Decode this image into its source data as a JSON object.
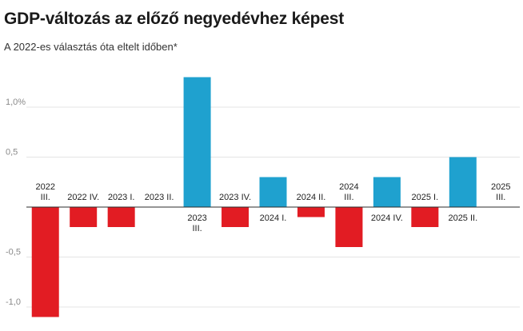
{
  "title": "GDP-változás az előző negyedévhez képest",
  "subtitle": "A 2022-es választás óta eltelt időben*",
  "colors": {
    "positive": "#1fa1cf",
    "negative": "#e21c23",
    "grid": "#e4e4e4",
    "axis": "#2b2b2b"
  },
  "chart_data": {
    "type": "bar",
    "title": "GDP-változás az előző negyedévhez képest",
    "subtitle": "A 2022-es választás óta eltelt időben*",
    "xlabel": "",
    "ylabel": "",
    "ylim": [
      -1.1,
      1.5
    ],
    "grid": true,
    "yticks": [
      {
        "value": 1.0,
        "label": "1,0%"
      },
      {
        "value": 0.5,
        "label": "0,5"
      },
      {
        "value": -0.5,
        "label": "-0,5"
      },
      {
        "value": -1.0,
        "label": "-1,0"
      }
    ],
    "categories": [
      [
        "2022",
        "III."
      ],
      [
        "2022 IV."
      ],
      [
        "2023 I."
      ],
      [
        "2023 II."
      ],
      [
        "2023",
        "III."
      ],
      [
        "2023 IV."
      ],
      [
        "2024 I."
      ],
      [
        "2024 II."
      ],
      [
        "2024",
        "III."
      ],
      [
        "2024 IV."
      ],
      [
        "2025 I."
      ],
      [
        "2025 II."
      ],
      [
        "2025",
        "III."
      ]
    ],
    "values": [
      -1.1,
      -0.2,
      -0.2,
      0.0,
      1.3,
      -0.2,
      0.3,
      -0.1,
      -0.4,
      0.3,
      -0.2,
      0.5,
      0.0
    ]
  }
}
